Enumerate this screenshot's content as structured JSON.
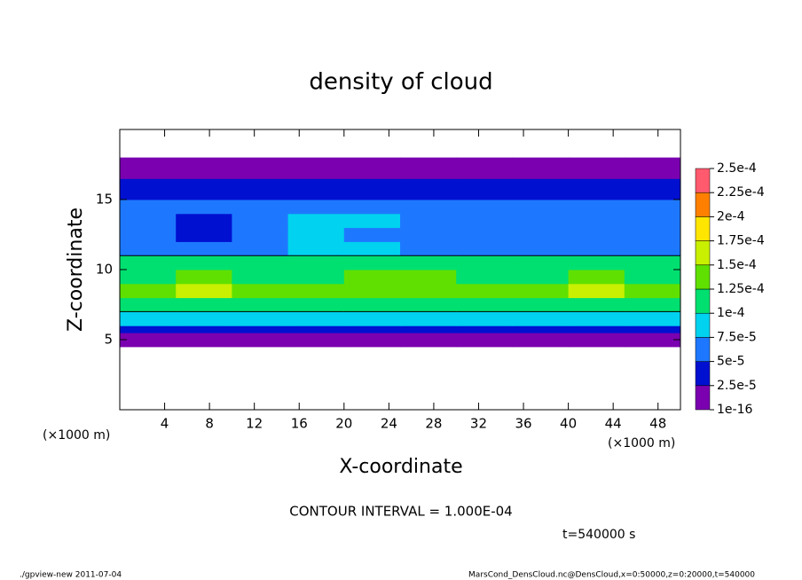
{
  "chart_data": {
    "type": "tone",
    "title": "density of cloud",
    "x_label": "X-coordinate",
    "y_label": "Z-coordinate",
    "x_unit": "(×1000 m)",
    "x_unit_right": "(×1000 m)",
    "xlim": [
      0,
      50
    ],
    "ylim": [
      0,
      20
    ],
    "xticks": [
      4,
      8,
      12,
      16,
      20,
      24,
      28,
      32,
      36,
      40,
      44,
      48
    ],
    "yticks": [
      5,
      10,
      15
    ],
    "x_edges": [
      0,
      5,
      10,
      15,
      20,
      25,
      30,
      35,
      40,
      45,
      50
    ],
    "z_edges": [
      4.5,
      5,
      5.5,
      6,
      7,
      8,
      9,
      10,
      11,
      12,
      13,
      14,
      15,
      16,
      16.5,
      17,
      18
    ],
    "values": [
      [
        1e-05,
        1e-05,
        1e-05,
        1e-05,
        1e-05,
        1e-05,
        1e-05,
        1e-05,
        1e-05,
        1e-05
      ],
      [
        2e-05,
        2e-05,
        2e-05,
        1.5e-05,
        1.5e-05,
        2e-05,
        2e-05,
        2e-05,
        2e-05,
        2e-05
      ],
      [
        4e-05,
        4e-05,
        4e-05,
        4e-05,
        4e-05,
        4e-05,
        4e-05,
        4e-05,
        4e-05,
        4e-05
      ],
      [
        8e-05,
        9e-05,
        8e-05,
        8.5e-05,
        9e-05,
        8e-05,
        8.5e-05,
        8e-05,
        9e-05,
        8e-05
      ],
      [
        0.00011,
        0.000115,
        0.000105,
        0.00011,
        0.000115,
        0.00011,
        0.000105,
        0.00011,
        0.000115,
        0.00011
      ],
      [
        0.00014,
        0.00016,
        0.00013,
        0.00013,
        0.00014,
        0.00014,
        0.00013,
        0.00013,
        0.00016,
        0.00014
      ],
      [
        0.00012,
        0.00013,
        0.00011,
        0.000115,
        0.00013,
        0.000125,
        0.00012,
        0.000115,
        0.00013,
        0.00012
      ],
      [
        0.000102,
        0.000105,
        0.000101,
        0.000103,
        0.000105,
        0.000104,
        0.000102,
        0.000101,
        0.000104,
        0.000103
      ],
      [
        6e-05,
        6.5e-05,
        7e-05,
        8e-05,
        7.5e-05,
        6.5e-05,
        7e-05,
        6.5e-05,
        6e-05,
        6.5e-05
      ],
      [
        5.5e-05,
        4.5e-05,
        6e-05,
        8e-05,
        7e-05,
        5.5e-05,
        6e-05,
        6e-05,
        5e-05,
        5.5e-05
      ],
      [
        5e-05,
        4.5e-05,
        5.5e-05,
        8e-05,
        7.5e-05,
        5.5e-05,
        5e-05,
        5.5e-05,
        5e-05,
        5e-05
      ],
      [
        5e-05,
        5e-05,
        5.5e-05,
        6e-05,
        6e-05,
        5.5e-05,
        5e-05,
        5e-05,
        5e-05,
        5e-05
      ],
      [
        3.5e-05,
        3.5e-05,
        3.5e-05,
        3.5e-05,
        3.5e-05,
        3.5e-05,
        3.5e-05,
        3.5e-05,
        3.5e-05,
        3.5e-05
      ],
      [
        3e-05,
        3e-05,
        3e-05,
        3e-05,
        3e-05,
        3e-05,
        3e-05,
        3e-05,
        3e-05,
        3e-05
      ],
      [
        1.5e-05,
        1.5e-05,
        1.5e-05,
        1.5e-05,
        1.5e-05,
        1.5e-05,
        1.5e-05,
        1.5e-05,
        1.5e-05,
        1.5e-05
      ],
      [
        1e-05,
        1e-05,
        1e-05,
        1e-05,
        1e-05,
        1e-05,
        1e-05,
        1e-05,
        1e-05,
        1e-05
      ]
    ],
    "colorbar": {
      "levels": [
        {
          "value": 1e-16,
          "label": "1e-16"
        },
        {
          "value": 2.5e-05,
          "label": "2.5e-5"
        },
        {
          "value": 5e-05,
          "label": "5e-5"
        },
        {
          "value": 7.5e-05,
          "label": "7.5e-5"
        },
        {
          "value": 0.0001,
          "label": "1e-4"
        },
        {
          "value": 0.000125,
          "label": "1.25e-4"
        },
        {
          "value": 0.00015,
          "label": "1.5e-4"
        },
        {
          "value": 0.000175,
          "label": "1.75e-4"
        },
        {
          "value": 0.0002,
          "label": "2e-4"
        },
        {
          "value": 0.000225,
          "label": "2.25e-4"
        },
        {
          "value": 0.00025,
          "label": "2.5e-4"
        }
      ],
      "colors": [
        "#7a00b0",
        "#0010d0",
        "#1e78ff",
        "#00d2f0",
        "#00e070",
        "#60e000",
        "#c8f000",
        "#ffe600",
        "#ff8000",
        "#ff5a6e"
      ]
    },
    "contour_interval": {
      "value": 0.0001,
      "label": "CONTOUR INTERVAL = 1.000E-04"
    },
    "time_label": "t=540000 s",
    "footer_left": "./gpview-new  2011-07-04",
    "footer_right": "MarsCond_DensCloud.nc@DensCloud,x=0:50000,z=0:20000,t=540000"
  }
}
